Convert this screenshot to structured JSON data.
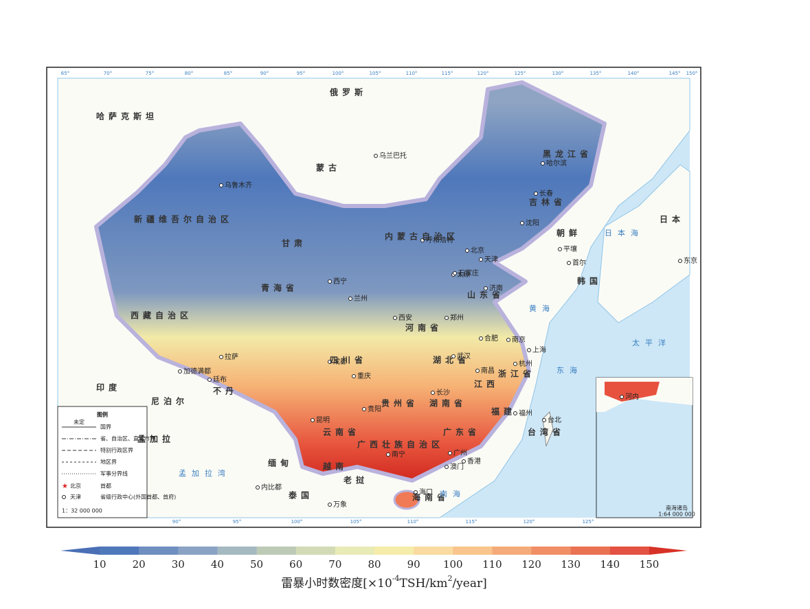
{
  "map": {
    "top_coords": [
      "65°",
      "70°",
      "75°",
      "80°",
      "85°",
      "90°",
      "95°",
      "100°",
      "105°",
      "110°",
      "115°",
      "120°",
      "125°",
      "130°",
      "135°",
      "140°",
      "145°",
      "150°"
    ],
    "bottom_coords": [
      "90°",
      "95°",
      "100°",
      "105°",
      "110°",
      "115°",
      "120°",
      "125°"
    ],
    "places": [
      "乌鲁木齐",
      "拉萨",
      "西宁",
      "兰州",
      "成都",
      "重庆",
      "昆明",
      "贵阳",
      "南宁",
      "长沙",
      "武汉",
      "郑州",
      "西安",
      "太原",
      "石家庄",
      "北京",
      "天津",
      "济南",
      "南京",
      "上海",
      "杭州",
      "福州",
      "台北",
      "广州",
      "香港",
      "澳门",
      "海口",
      "长春",
      "哈尔滨",
      "沈阳",
      "呼和浩特",
      "乌兰巴托",
      "平壤",
      "首尔",
      "东京",
      "河内",
      "万象",
      "内比都",
      "廷布",
      "加德满都",
      "合肥",
      "南昌"
    ],
    "regions": [
      "新疆维吾尔自治区",
      "西藏自治区",
      "青海省",
      "甘肃",
      "内蒙古自治区",
      "黑龙江省",
      "吉林省",
      "四川省",
      "云南省",
      "贵州省",
      "湖南省",
      "湖北省",
      "河南省",
      "广西壮族自治区",
      "广东省",
      "江西",
      "浙江省",
      "福建",
      "山东省",
      "海南省",
      "台湾省"
    ],
    "countries": [
      "俄罗斯",
      "哈萨克斯坦",
      "蒙古",
      "朝鲜",
      "韩国",
      "日本",
      "印度",
      "缅甸",
      "老挝",
      "泰国",
      "越南",
      "尼泊尔",
      "不丹",
      "孟加拉"
    ],
    "seas": [
      "日本海",
      "黄海",
      "东海",
      "南海",
      "孟加拉湾",
      "太平洋"
    ],
    "legend": {
      "title": "图例",
      "items": [
        "国界",
        "省、自治区、直辖市界",
        "特别行政区界",
        "地区界",
        "军事分界线"
      ],
      "undetermined": "未定",
      "capital_city": "北京",
      "capital": "首都",
      "provincial_city": "天津",
      "provincial": "省级行政中心(外国首都、首府)",
      "scale": "1：32 000 000"
    },
    "inset": {
      "title": "南海诸岛",
      "scale": "1:64 000 000"
    }
  },
  "colorbar": {
    "ticks": [
      10,
      20,
      30,
      40,
      50,
      60,
      70,
      80,
      90,
      100,
      110,
      120,
      130,
      140,
      150
    ],
    "colors": [
      "#4a6fb5",
      "#4f78bb",
      "#6e8fc0",
      "#8aa3c4",
      "#a5b9c0",
      "#bdcab6",
      "#d2dbb5",
      "#e8ebb6",
      "#f6ecaa",
      "#f9dba0",
      "#f9c58c",
      "#f5ab79",
      "#f08e66",
      "#e97253",
      "#e35242",
      "#d73227"
    ],
    "label": [
      "雷暴小时数密度[×10",
      "-4",
      "TSH/km",
      "2",
      "/year]"
    ]
  }
}
